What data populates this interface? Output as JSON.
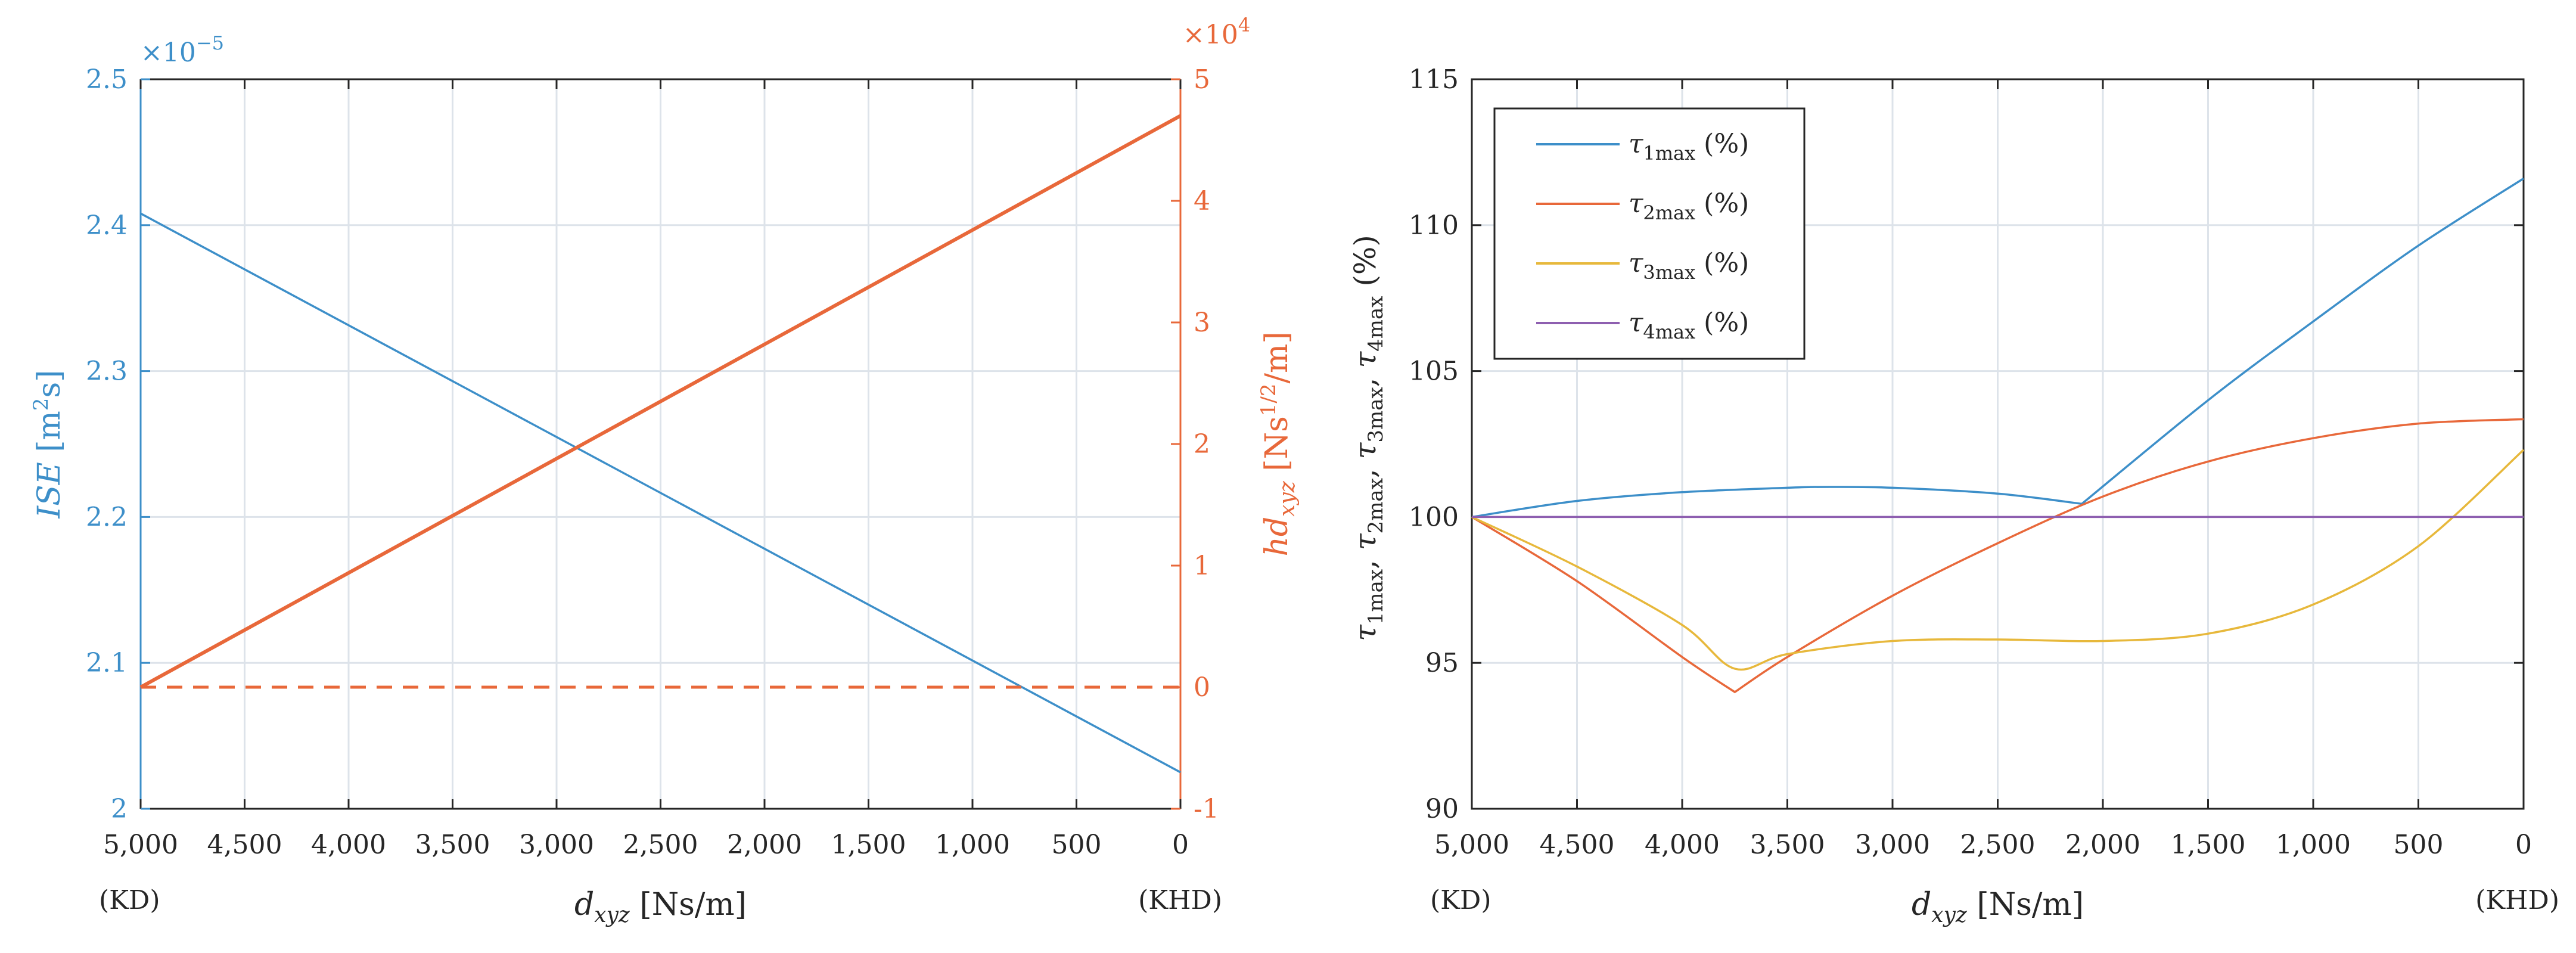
{
  "colors": {
    "blue": "#3d8fc9",
    "orange": "#e8683a",
    "yellow": "#e7b83b",
    "purple": "#8e5fb0",
    "grid": "#dde3ea",
    "axis": "#262626",
    "legend_border": "#262626"
  },
  "chart_data": [
    {
      "type": "line",
      "panel": "left",
      "x": [
        5000,
        4500,
        4000,
        3500,
        3000,
        2500,
        2000,
        1500,
        1000,
        500,
        0
      ],
      "x_tick_labels": [
        "5,000",
        "4,500",
        "4,000",
        "3,500",
        "3,000",
        "2,500",
        "2,000",
        "1,500",
        "1,000",
        "500",
        "0"
      ],
      "x_range": [
        5000,
        0
      ],
      "x_reversed": true,
      "xlabel_main": "d",
      "xlabel_sub": "xyz",
      "xlabel_unit": " [Ns/m]",
      "x_end_label_left": "(KD)",
      "x_end_label_right": "(KHD)",
      "y_left": {
        "label_main": "ISE",
        "label_unit": "  [m²s]",
        "multiplier": "×10−5",
        "range": [
          2.0,
          2.5
        ],
        "ticks": [
          2.0,
          2.1,
          2.2,
          2.3,
          2.4,
          2.5
        ],
        "tick_labels": [
          "2",
          "2.1",
          "2.2",
          "2.3",
          "2.4",
          "2.5"
        ]
      },
      "y_right": {
        "label_main": "hd",
        "label_sub": "xyz",
        "label_unit": "  [Ns1/2/m]",
        "multiplier": "×104",
        "range": [
          -1,
          5
        ],
        "ticks": [
          -1,
          0,
          1,
          2,
          3,
          4,
          5
        ],
        "tick_labels": [
          "-1",
          "0",
          "1",
          "2",
          "3",
          "4",
          "5"
        ]
      },
      "series": [
        {
          "name": "ISE",
          "axis": "left",
          "style": "solid",
          "color_key": "blue",
          "x": [
            5000,
            0
          ],
          "values": [
            2.408,
            2.025
          ]
        },
        {
          "name": "hd_xyz",
          "axis": "right",
          "style": "solid",
          "color_key": "orange",
          "x": [
            5000,
            0
          ],
          "values": [
            0.0,
            4.7
          ]
        },
        {
          "name": "zero",
          "axis": "right",
          "style": "dashed",
          "color_key": "orange",
          "x": [
            5000,
            0
          ],
          "values": [
            0.0,
            0.0
          ]
        }
      ]
    },
    {
      "type": "line",
      "panel": "right",
      "x": [
        5000,
        4500,
        4000,
        3500,
        3000,
        2500,
        2000,
        1500,
        1000,
        500,
        0
      ],
      "x_tick_labels": [
        "5,000",
        "4,500",
        "4,000",
        "3,500",
        "3,000",
        "2,500",
        "2,000",
        "1,500",
        "1,000",
        "500",
        "0"
      ],
      "x_range": [
        5000,
        0
      ],
      "x_reversed": true,
      "xlabel_main": "d",
      "xlabel_sub": "xyz",
      "xlabel_unit": " [Ns/m]",
      "x_end_label_left": "(KD)",
      "x_end_label_right": "(KHD)",
      "ylabel": "τ1max, τ2max, τ3max, τ4max (%)",
      "ylim": [
        90,
        115
      ],
      "y_ticks": [
        90,
        95,
        100,
        105,
        110,
        115
      ],
      "y_tick_labels": [
        "90",
        "95",
        "100",
        "105",
        "110",
        "115"
      ],
      "legend": {
        "position": "top-left",
        "entries": [
          {
            "symbol": "τ",
            "sub": "1max",
            "suffix": " (%)",
            "color_key": "blue"
          },
          {
            "symbol": "τ",
            "sub": "2max",
            "suffix": " (%)",
            "color_key": "orange"
          },
          {
            "symbol": "τ",
            "sub": "3max",
            "suffix": " (%)",
            "color_key": "yellow"
          },
          {
            "symbol": "τ",
            "sub": "4max",
            "suffix": " (%)",
            "color_key": "purple"
          }
        ]
      },
      "series": [
        {
          "name": "τ1max (%)",
          "color_key": "blue",
          "x": [
            5000,
            4500,
            4000,
            3500,
            3300,
            3000,
            2500,
            2100,
            1500,
            1000,
            500,
            0
          ],
          "values": [
            100.0,
            100.55,
            100.85,
            101.0,
            101.03,
            101.0,
            100.8,
            100.45,
            104.0,
            106.7,
            109.3,
            111.6
          ]
        },
        {
          "name": "τ2max (%)",
          "color_key": "orange",
          "x": [
            5000,
            4500,
            4000,
            3750,
            3500,
            3000,
            2500,
            2000,
            1500,
            1000,
            500,
            0
          ],
          "values": [
            100.0,
            97.8,
            95.2,
            94.0,
            95.2,
            97.3,
            99.1,
            100.7,
            101.9,
            102.7,
            103.2,
            103.35
          ]
        },
        {
          "name": "τ3max (%)",
          "color_key": "yellow",
          "x": [
            5000,
            4500,
            4000,
            3750,
            3500,
            3000,
            2500,
            2000,
            1500,
            1000,
            500,
            0
          ],
          "values": [
            100.0,
            98.3,
            96.3,
            94.8,
            95.3,
            95.75,
            95.8,
            95.75,
            96.0,
            97.0,
            99.0,
            102.3
          ]
        },
        {
          "name": "τ4max (%)",
          "color_key": "purple",
          "x": [
            5000,
            0
          ],
          "values": [
            100.0,
            100.0
          ]
        }
      ]
    }
  ]
}
